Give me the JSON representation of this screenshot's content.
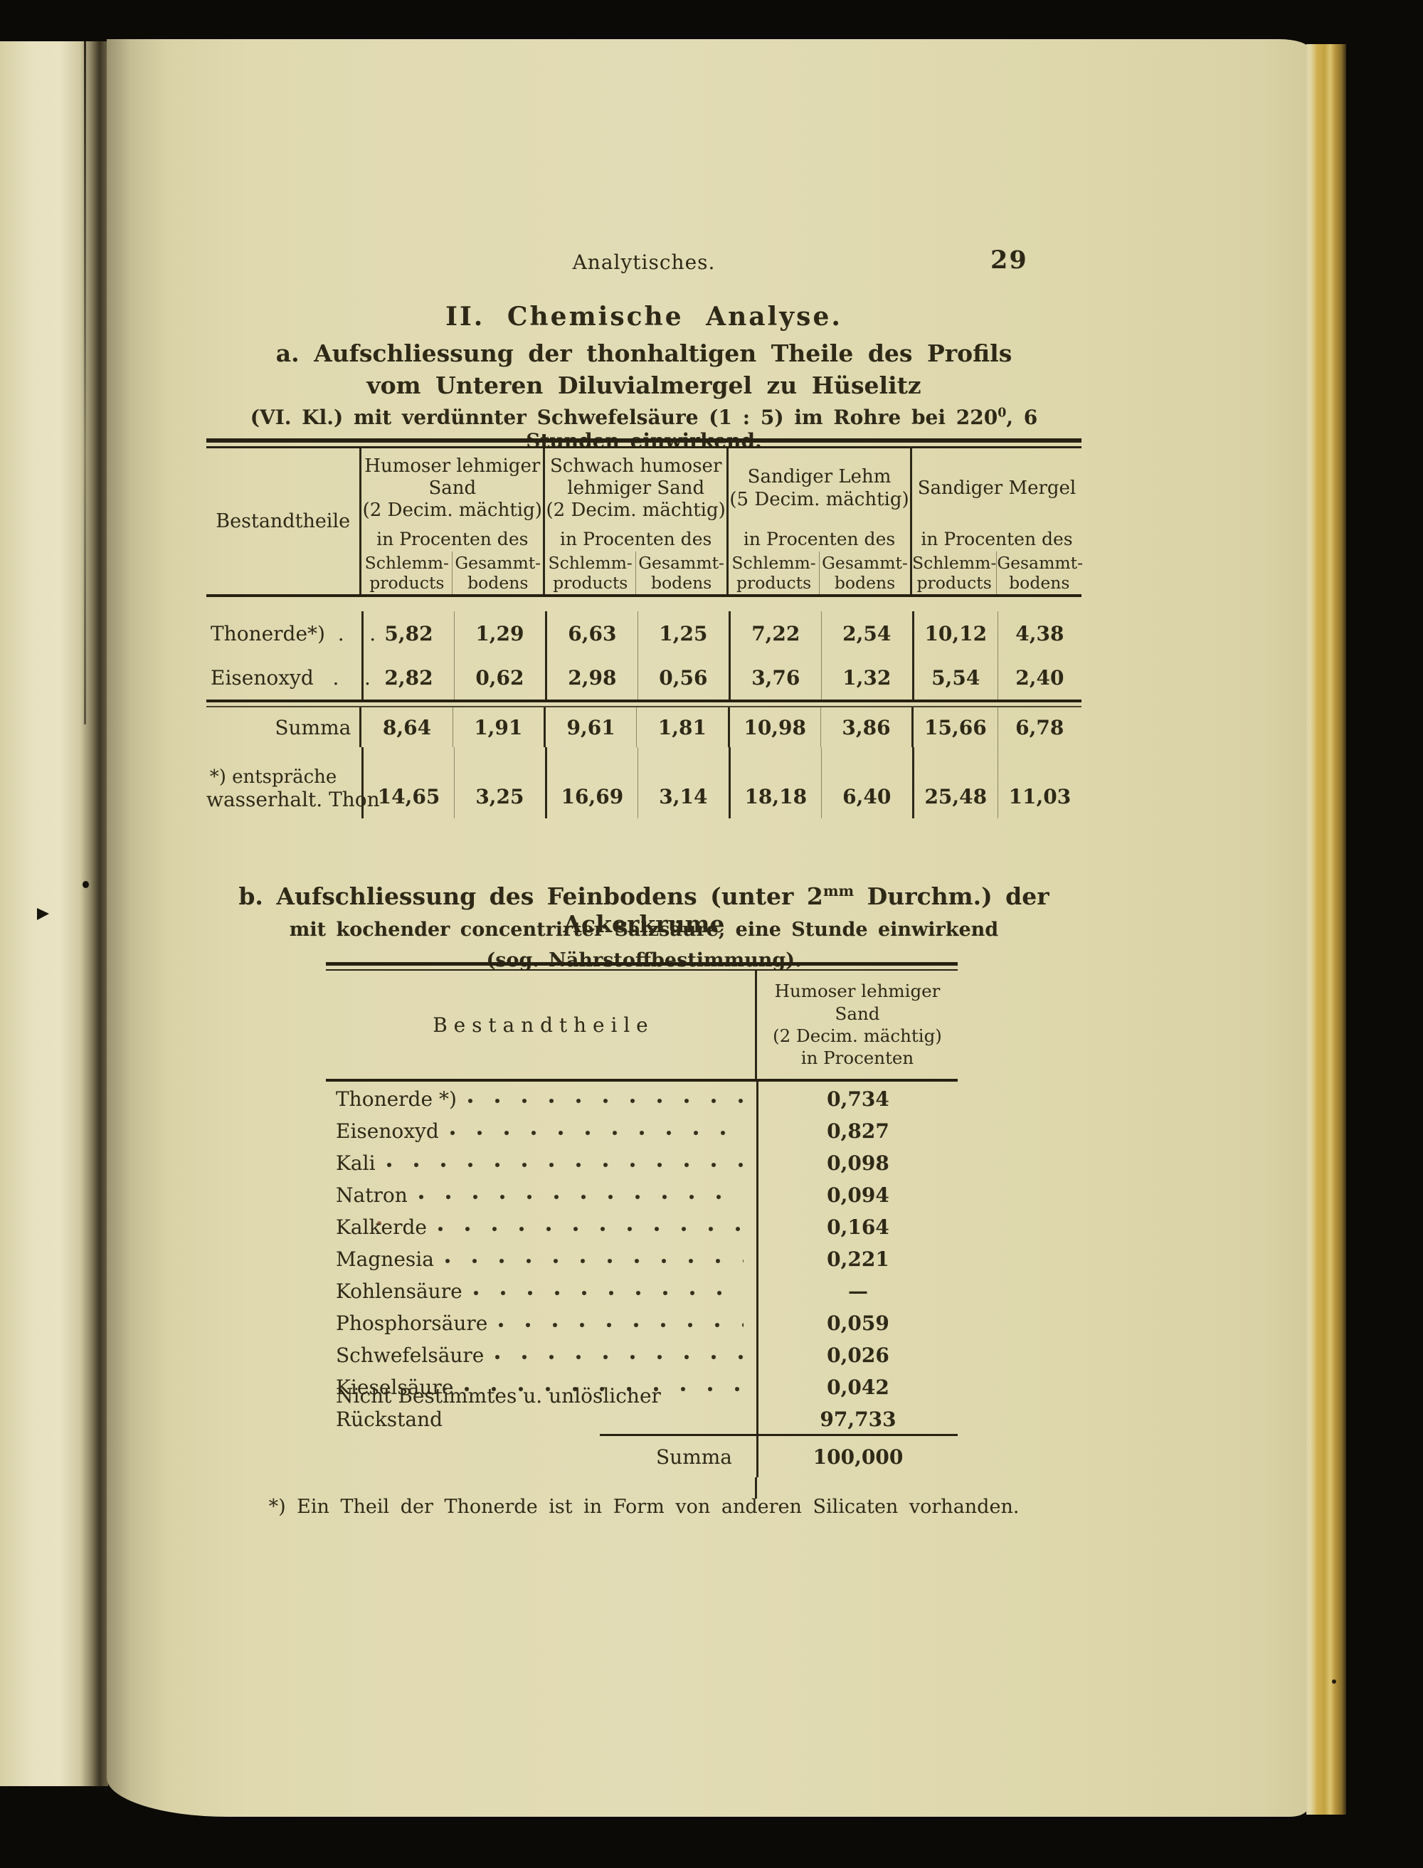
{
  "page": {
    "running_header": "Analytisches.",
    "page_number": "29",
    "section_title": "II. Chemische Analyse.",
    "subtitle_a_line1": "a. Aufschliessung der thonhaltigen Theile des Profils",
    "subtitle_a_line2": "vom Unteren Diluvialmergel zu Hüselitz",
    "subtitle_a_line3_pre": "(VI. Kl.) mit verdünnter Schwefelsäure (1 : 5) im Rohre bei 220",
    "subtitle_a_line3_sup": "0",
    "subtitle_a_line3_post": ", 6 Stunden einwirkend.",
    "subtitle_b_line1_pre": "b. Aufschliessung des Feinbodens (unter 2",
    "subtitle_b_line1_sup": "mm",
    "subtitle_b_line1_post": " Durchm.) der Ackerkrume",
    "subtitle_b_line2": "mit kochender concentrirter Salzsäure, eine Stunde einwirkend",
    "subtitle_b_line3": "(sog. Nährstoffbestimmung).",
    "footnote": "*) Ein Theil der Thonerde ist in Form von anderen Silicaten vorhanden."
  },
  "table1": {
    "col_header": "Bestandtheile",
    "groups": [
      {
        "line1": "Humoser lehmiger",
        "line2": "Sand",
        "line3": "(2 Decim. mächtig)",
        "unit": "in Procenten des",
        "sub1a": "Schlemm-",
        "sub1b": "products",
        "sub2a": "Gesammt-",
        "sub2b": "bodens"
      },
      {
        "line1": "Schwach humoser",
        "line2": "lehmiger Sand",
        "line3": "(2 Decim. mächtig)",
        "unit": "in Procenten des",
        "sub1a": "Schlemm-",
        "sub1b": "products",
        "sub2a": "Gesammt-",
        "sub2b": "bodens"
      },
      {
        "line1": "Sandiger Lehm",
        "line2": "(5 Decim. mächtig)",
        "line3": "",
        "unit": "in Procenten des",
        "sub1a": "Schlemm-",
        "sub1b": "products",
        "sub2a": "Gesammt-",
        "sub2b": "bodens"
      },
      {
        "line1": "Sandiger Mergel",
        "line2": "",
        "line3": "",
        "unit": "in Procenten des",
        "sub1a": "Schlemm-",
        "sub1b": "products",
        "sub2a": "Gesammt-",
        "sub2b": "bodens"
      }
    ],
    "rows": [
      {
        "label": "Thonerde*)  .    .",
        "values": [
          "5,82",
          "1,29",
          "6,63",
          "1,25",
          "7,22",
          "2,54",
          "10,12",
          "4,38"
        ]
      },
      {
        "label": "Eisenoxyd   .    .",
        "values": [
          "2,82",
          "0,62",
          "2,98",
          "0,56",
          "3,76",
          "1,32",
          "5,54",
          "2,40"
        ]
      }
    ],
    "summa_label": "Summa",
    "summa_values": [
      "8,64",
      "1,91",
      "9,61",
      "1,81",
      "10,98",
      "3,86",
      "15,66",
      "6,78"
    ],
    "note_label_line1": "*) entspräche",
    "note_label_line2": "wasserhalt. Thon",
    "note_values": [
      "14,65",
      "3,25",
      "16,69",
      "3,14",
      "18,18",
      "6,40",
      "25,48",
      "11,03"
    ]
  },
  "table2": {
    "header_label": "B e s t a n d t h e i l e",
    "header_value_line1": "Humoser lehmiger",
    "header_value_line2": "Sand",
    "header_value_line3": "(2 Decim. mächtig)",
    "header_value_line4": "in Procenten",
    "rows": [
      {
        "label": "Thonerde *)",
        "value": "0,734"
      },
      {
        "label": "Eisenoxyd",
        "value": "0,827"
      },
      {
        "label": "Kali",
        "value": "0,098"
      },
      {
        "label": "Natron",
        "value": "0,094"
      },
      {
        "label": "Kalkerde",
        "value": "0,164"
      },
      {
        "label": "Magnesia",
        "value": "0,221"
      },
      {
        "label": "Kohlensäure",
        "value": "—"
      },
      {
        "label": "Phosphorsäure",
        "value": "0,059"
      },
      {
        "label": "Schwefelsäure",
        "value": "0,026"
      },
      {
        "label": "Kieselsäure",
        "value": "0,042"
      },
      {
        "label": "Nicht Bestimmtes u. unlöslicher Rückstand",
        "value": "97,733"
      }
    ],
    "summa_label": "Summa",
    "summa_value": "100,000"
  }
}
